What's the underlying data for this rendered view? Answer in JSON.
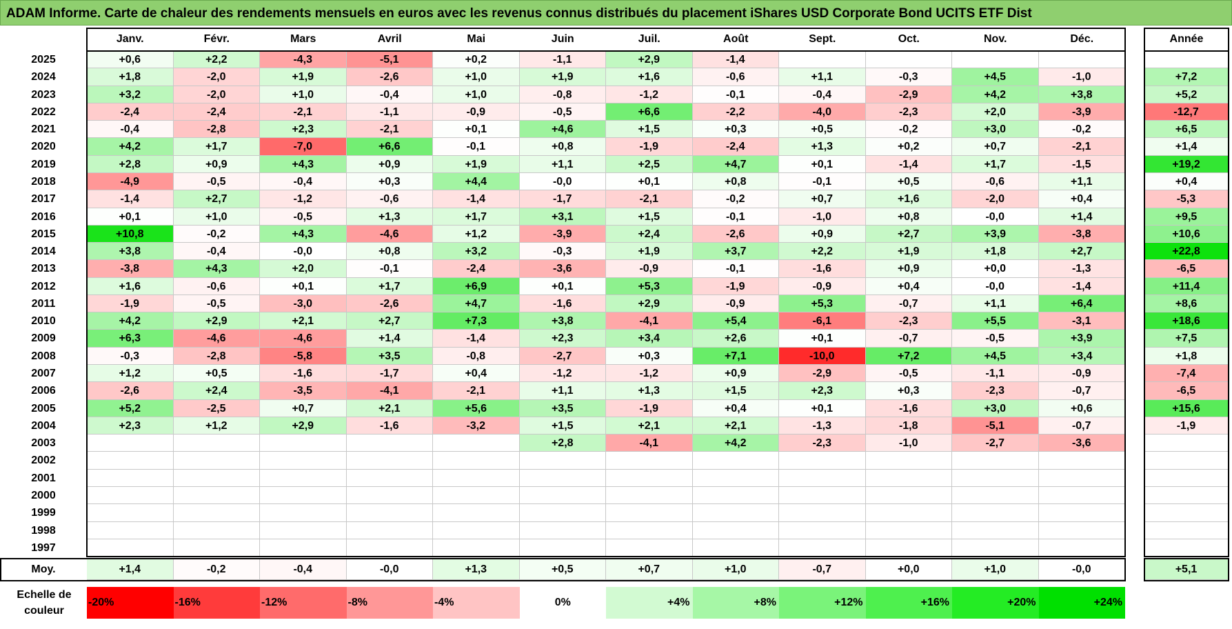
{
  "title": "ADAM Informe. Carte de chaleur des rendements mensuels en euros avec les revenus connus distribués du placement iShares USD Corporate Bond UCITS ETF Dist",
  "chart_data": {
    "type": "heatmap",
    "title": "ADAM Informe. Carte de chaleur des rendements mensuels en euros avec les revenus connus distribués du placement iShares USD Corporate Bond UCITS ETF Dist",
    "months": [
      "Janv.",
      "Févr.",
      "Mars",
      "Avril",
      "Mai",
      "Juin",
      "Juil.",
      "Août",
      "Sept.",
      "Oct.",
      "Nov.",
      "Déc."
    ],
    "year_header": "Année",
    "rows": [
      {
        "year": "2025",
        "values": [
          "+0,6",
          "+2,2",
          "-4,3",
          "-5,1",
          "+0,2",
          "-1,1",
          "+2,9",
          "-1,4",
          "",
          "",
          "",
          ""
        ],
        "annual": ""
      },
      {
        "year": "2024",
        "values": [
          "+1,8",
          "-2,0",
          "+1,9",
          "-2,6",
          "+1,0",
          "+1,9",
          "+1,6",
          "-0,6",
          "+1,1",
          "-0,3",
          "+4,5",
          "-1,0"
        ],
        "annual": "+7,2"
      },
      {
        "year": "2023",
        "values": [
          "+3,2",
          "-2,0",
          "+1,0",
          "-0,4",
          "+1,0",
          "-0,8",
          "-1,2",
          "-0,1",
          "-0,4",
          "-2,9",
          "+4,2",
          "+3,8"
        ],
        "annual": "+5,2"
      },
      {
        "year": "2022",
        "values": [
          "-2,4",
          "-2,4",
          "-2,1",
          "-1,1",
          "-0,9",
          "-0,5",
          "+6,6",
          "-2,2",
          "-4,0",
          "-2,3",
          "+2,0",
          "-3,9"
        ],
        "annual": "-12,7"
      },
      {
        "year": "2021",
        "values": [
          "-0,4",
          "-2,8",
          "+2,3",
          "-2,1",
          "+0,1",
          "+4,6",
          "+1,5",
          "+0,3",
          "+0,5",
          "-0,2",
          "+3,0",
          "-0,2"
        ],
        "annual": "+6,5"
      },
      {
        "year": "2020",
        "values": [
          "+4,2",
          "+1,7",
          "-7,0",
          "+6,6",
          "-0,1",
          "+0,8",
          "-1,9",
          "-2,4",
          "+1,3",
          "+0,2",
          "+0,7",
          "-2,1"
        ],
        "annual": "+1,4"
      },
      {
        "year": "2019",
        "values": [
          "+2,8",
          "+0,9",
          "+4,3",
          "+0,9",
          "+1,9",
          "+1,1",
          "+2,5",
          "+4,7",
          "+0,1",
          "-1,4",
          "+1,7",
          "-1,5"
        ],
        "annual": "+19,2"
      },
      {
        "year": "2018",
        "values": [
          "-4,9",
          "-0,5",
          "-0,4",
          "+0,3",
          "+4,4",
          "-0,0",
          "+0,1",
          "+0,8",
          "-0,1",
          "+0,5",
          "-0,6",
          "+1,1"
        ],
        "annual": "+0,4"
      },
      {
        "year": "2017",
        "values": [
          "-1,4",
          "+2,7",
          "-1,2",
          "-0,6",
          "-1,4",
          "-1,7",
          "-2,1",
          "-0,2",
          "+0,7",
          "+1,6",
          "-2,0",
          "+0,4"
        ],
        "annual": "-5,3"
      },
      {
        "year": "2016",
        "values": [
          "+0,1",
          "+1,0",
          "-0,5",
          "+1,3",
          "+1,7",
          "+3,1",
          "+1,5",
          "-0,1",
          "-1,0",
          "+0,8",
          "-0,0",
          "+1,4"
        ],
        "annual": "+9,5"
      },
      {
        "year": "2015",
        "values": [
          "+10,8",
          "-0,2",
          "+4,3",
          "-4,6",
          "+1,2",
          "-3,9",
          "+2,4",
          "-2,6",
          "+0,9",
          "+2,7",
          "+3,9",
          "-3,8"
        ],
        "annual": "+10,6"
      },
      {
        "year": "2014",
        "values": [
          "+3,8",
          "-0,4",
          "-0,0",
          "+0,8",
          "+3,2",
          "-0,3",
          "+1,9",
          "+3,7",
          "+2,2",
          "+1,9",
          "+1,8",
          "+2,7"
        ],
        "annual": "+22,8"
      },
      {
        "year": "2013",
        "values": [
          "-3,8",
          "+4,3",
          "+2,0",
          "-0,1",
          "-2,4",
          "-3,6",
          "-0,9",
          "-0,1",
          "-1,6",
          "+0,9",
          "+0,0",
          "-1,3"
        ],
        "annual": "-6,5"
      },
      {
        "year": "2012",
        "values": [
          "+1,6",
          "-0,6",
          "+0,1",
          "+1,7",
          "+6,9",
          "+0,1",
          "+5,3",
          "-1,9",
          "-0,9",
          "+0,4",
          "-0,0",
          "-1,4"
        ],
        "annual": "+11,4"
      },
      {
        "year": "2011",
        "values": [
          "-1,9",
          "-0,5",
          "-3,0",
          "-2,6",
          "+4,7",
          "-1,6",
          "+2,9",
          "-0,9",
          "+5,3",
          "-0,7",
          "+1,1",
          "+6,4"
        ],
        "annual": "+8,6"
      },
      {
        "year": "2010",
        "values": [
          "+4,2",
          "+2,9",
          "+2,1",
          "+2,7",
          "+7,3",
          "+3,8",
          "-4,1",
          "+5,4",
          "-6,1",
          "-2,3",
          "+5,5",
          "-3,1"
        ],
        "annual": "+18,6"
      },
      {
        "year": "2009",
        "values": [
          "+6,3",
          "-4,6",
          "-4,6",
          "+1,4",
          "-1,4",
          "+2,3",
          "+3,4",
          "+2,6",
          "+0,1",
          "-0,7",
          "-0,5",
          "+3,9"
        ],
        "annual": "+7,5"
      },
      {
        "year": "2008",
        "values": [
          "-0,3",
          "-2,8",
          "-5,8",
          "+3,5",
          "-0,8",
          "-2,7",
          "+0,3",
          "+7,1",
          "-10,0",
          "+7,2",
          "+4,5",
          "+3,4"
        ],
        "annual": "+1,8"
      },
      {
        "year": "2007",
        "values": [
          "+1,2",
          "+0,5",
          "-1,6",
          "-1,7",
          "+0,4",
          "-1,2",
          "-1,2",
          "+0,9",
          "-2,9",
          "-0,5",
          "-1,1",
          "-0,9"
        ],
        "annual": "-7,4"
      },
      {
        "year": "2006",
        "values": [
          "-2,6",
          "+2,4",
          "-3,5",
          "-4,1",
          "-2,1",
          "+1,1",
          "+1,3",
          "+1,5",
          "+2,3",
          "+0,3",
          "-2,3",
          "-0,7"
        ],
        "annual": "-6,5"
      },
      {
        "year": "2005",
        "values": [
          "+5,2",
          "-2,5",
          "+0,7",
          "+2,1",
          "+5,6",
          "+3,5",
          "-1,9",
          "+0,4",
          "+0,1",
          "-1,6",
          "+3,0",
          "+0,6"
        ],
        "annual": "+15,6"
      },
      {
        "year": "2004",
        "values": [
          "+2,3",
          "+1,2",
          "+2,9",
          "-1,6",
          "-3,2",
          "+1,5",
          "+2,1",
          "+2,1",
          "-1,3",
          "-1,8",
          "-5,1",
          "-0,7"
        ],
        "annual": "-1,9"
      },
      {
        "year": "2003",
        "values": [
          "",
          "",
          "",
          "",
          "",
          "+2,8",
          "-4,1",
          "+4,2",
          "-2,3",
          "-1,0",
          "-2,7",
          "-3,6"
        ],
        "annual": ""
      },
      {
        "year": "2002",
        "values": [
          "",
          "",
          "",
          "",
          "",
          "",
          "",
          "",
          "",
          "",
          "",
          ""
        ],
        "annual": ""
      },
      {
        "year": "2001",
        "values": [
          "",
          "",
          "",
          "",
          "",
          "",
          "",
          "",
          "",
          "",
          "",
          ""
        ],
        "annual": ""
      },
      {
        "year": "2000",
        "values": [
          "",
          "",
          "",
          "",
          "",
          "",
          "",
          "",
          "",
          "",
          "",
          ""
        ],
        "annual": ""
      },
      {
        "year": "1999",
        "values": [
          "",
          "",
          "",
          "",
          "",
          "",
          "",
          "",
          "",
          "",
          "",
          ""
        ],
        "annual": ""
      },
      {
        "year": "1998",
        "values": [
          "",
          "",
          "",
          "",
          "",
          "",
          "",
          "",
          "",
          "",
          "",
          ""
        ],
        "annual": ""
      },
      {
        "year": "1997",
        "values": [
          "",
          "",
          "",
          "",
          "",
          "",
          "",
          "",
          "",
          "",
          "",
          ""
        ],
        "annual": ""
      }
    ],
    "average": {
      "label": "Moy.",
      "values": [
        "+1,4",
        "-0,2",
        "-0,4",
        "-0,0",
        "+1,3",
        "+0,5",
        "+0,7",
        "+1,0",
        "-0,7",
        "+0,0",
        "+1,0",
        "-0,0"
      ],
      "annual": "+5,1"
    },
    "scale": {
      "label": "Echelle de couleur",
      "steps": [
        {
          "label": "-20%",
          "color": "#ff0000"
        },
        {
          "label": "-16%",
          "color": "#ff3b3b"
        },
        {
          "label": "-12%",
          "color": "#ff6b6b"
        },
        {
          "label": "-8%",
          "color": "#ff9797"
        },
        {
          "label": "-4%",
          "color": "#ffc4c4"
        },
        {
          "label": "0%",
          "color": "#ffffff"
        },
        {
          "label": "+4%",
          "color": "#d2fad2"
        },
        {
          "label": "+8%",
          "color": "#a6f7a6"
        },
        {
          "label": "+12%",
          "color": "#7af37a"
        },
        {
          "label": "+16%",
          "color": "#4ef04e"
        },
        {
          "label": "+20%",
          "color": "#24ec24"
        },
        {
          "label": "+24%",
          "color": "#00e000"
        }
      ]
    }
  }
}
